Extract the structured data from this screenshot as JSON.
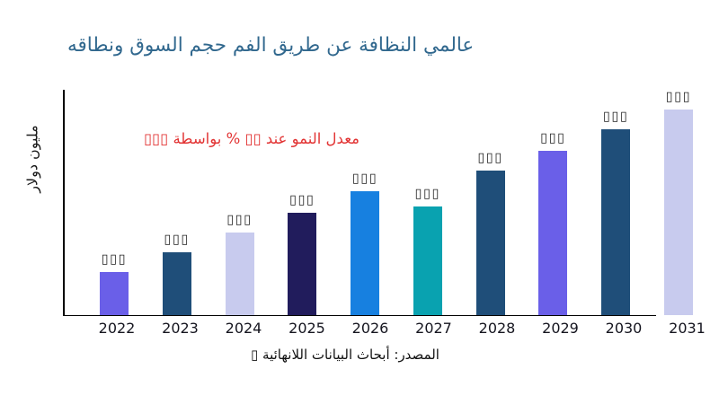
{
  "title": {
    "text": "عالمي النظافة عن طريق الفم حجم السوق ونطاقه",
    "color": "#31688E"
  },
  "y_axis_label": "مليون دولار",
  "growth_note": {
    "text": "معدل النمو عند ▯▯ % بواسطة ▯▯▯",
    "color": "#E23434"
  },
  "source_note": "المصدر: أبحاث البيانات اللانهائية ▯",
  "chart_data": {
    "type": "bar",
    "title": "عالمي النظافة عن طريق الفم حجم السوق ونطاقه",
    "xlabel": "",
    "ylabel": "مليون دولار",
    "categories": [
      "2022",
      "2023",
      "2024",
      "2025",
      "2026",
      "2027",
      "2028",
      "2029",
      "2030",
      "2031"
    ],
    "values": [
      48,
      70,
      92,
      114,
      138,
      121,
      161,
      183,
      207,
      229
    ],
    "scale_note": "no numeric axis ticks visible; bar data labels render as missing-glyph boxes",
    "bar_value_label": "▯▯▯",
    "bar_colors": [
      "#6A5FE8",
      "#1F4E79",
      "#C8CBEE",
      "#211C5C",
      "#1780E0",
      "#09A2B0",
      "#1F4E79",
      "#6A5FE8",
      "#1F4E79",
      "#C8CBEE"
    ],
    "axis_color": "#000000",
    "grid": "off",
    "legend": "none"
  }
}
